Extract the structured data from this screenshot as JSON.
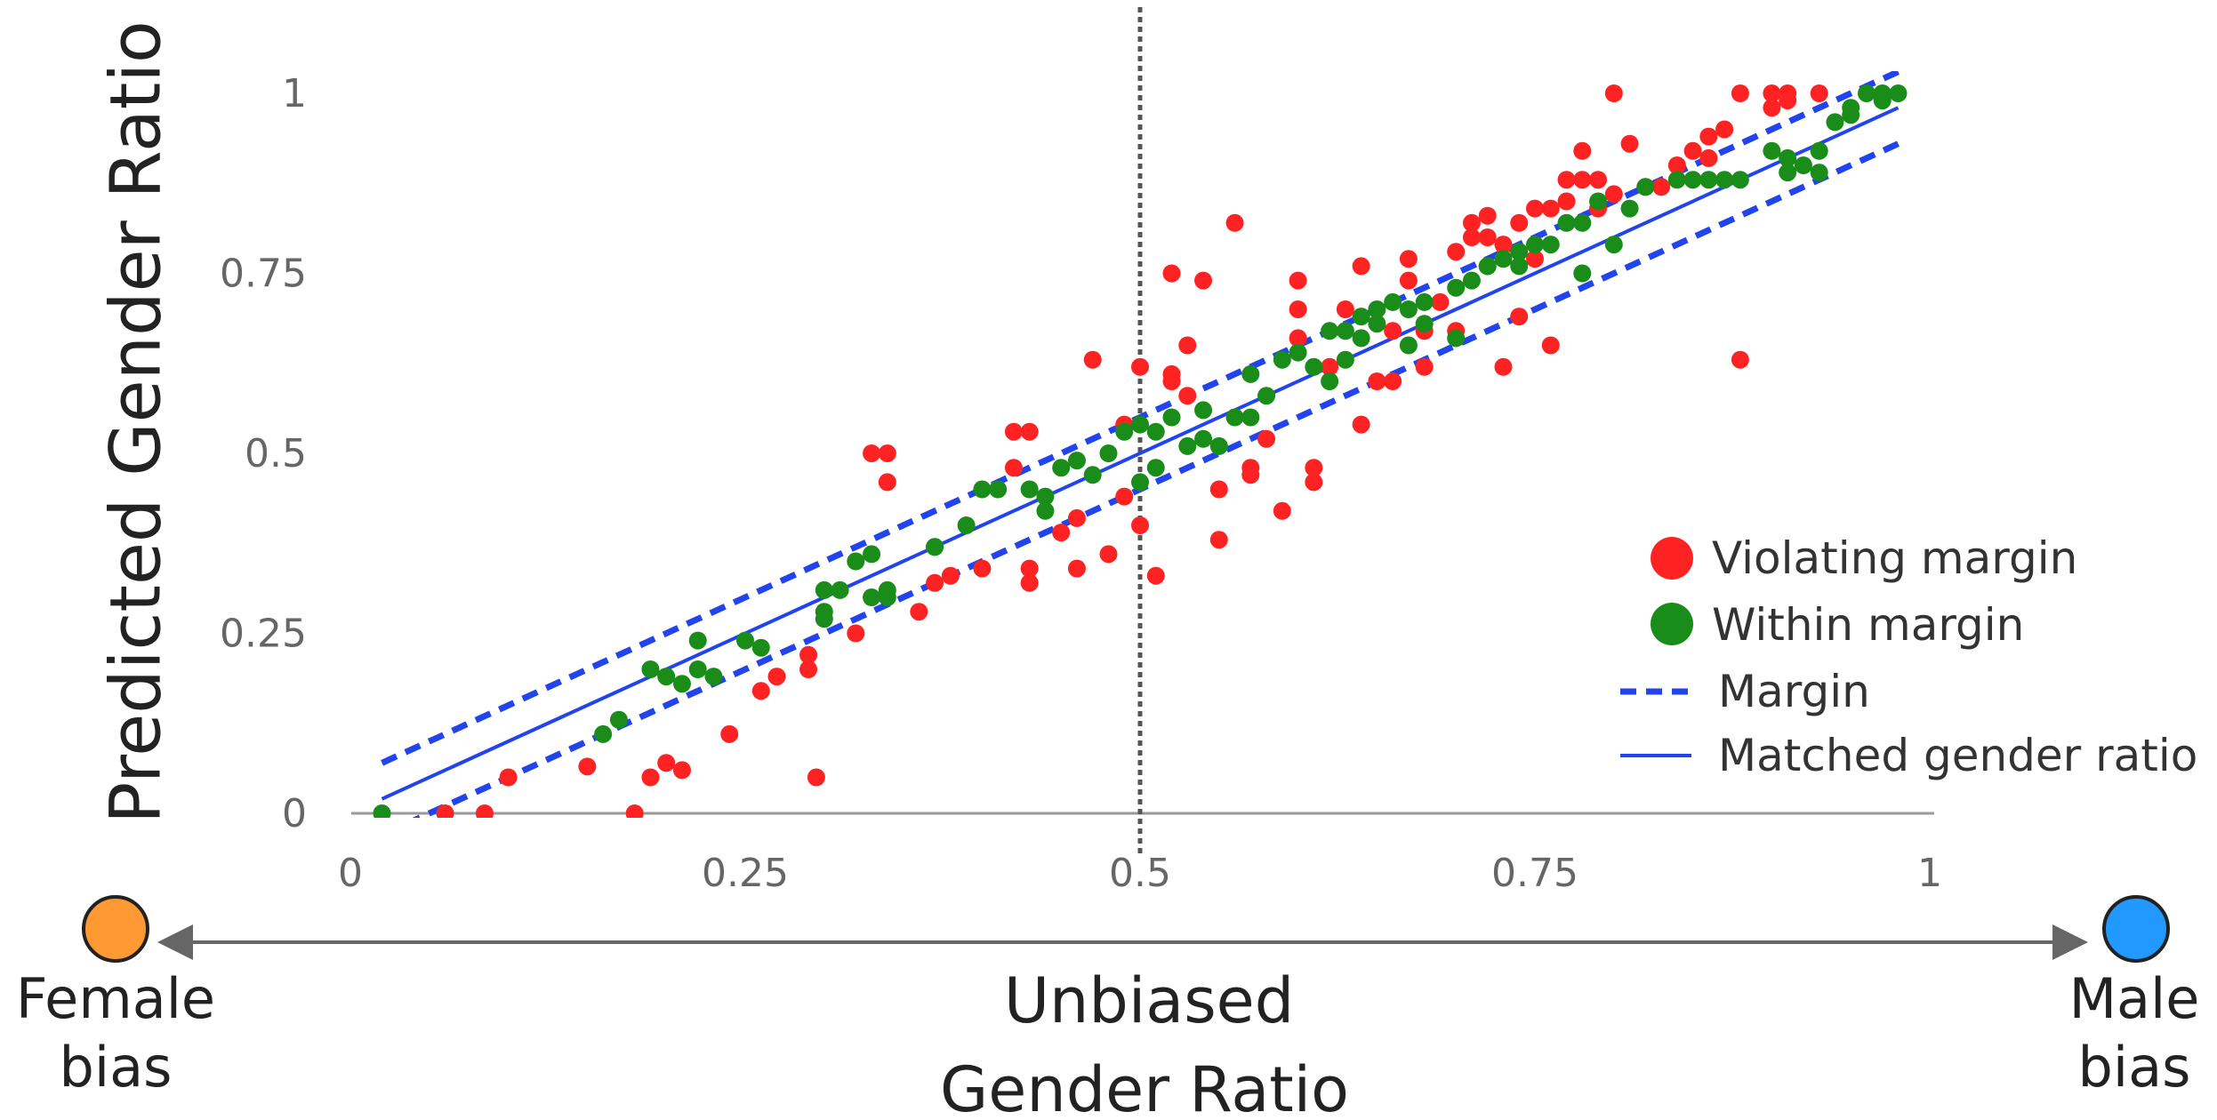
{
  "chart_data": {
    "type": "scatter",
    "xlabel": "Gender Ratio",
    "ylabel": "Predicted Gender Ratio",
    "xlim": [
      0,
      1
    ],
    "ylim": [
      0,
      1
    ],
    "x_ticks": [
      "0",
      "0.25",
      "0.5",
      "0.75",
      "1"
    ],
    "y_ticks": [
      "0",
      "0.25",
      "0.5",
      "0.75",
      "1"
    ],
    "reference_x": 0.5,
    "margin": 0.05,
    "grid": false,
    "legend_position": "bottom-right",
    "legend": {
      "violating": "Violating margin",
      "within": "Within margin",
      "margin": "Margin",
      "matched": "Matched gender ratio"
    },
    "colors": {
      "violating": "#ff2222",
      "within": "#1a8c1a",
      "line": "#2244ee",
      "female": "#ff9933",
      "male": "#2299ff",
      "arrow": "#666666"
    },
    "bias_axis": {
      "left_line1": "Female",
      "left_line2": "bias",
      "center": "Unbiased",
      "right_line1": "Male",
      "right_line2": "bias"
    },
    "series": [
      {
        "name": "Violating margin",
        "points": [
          [
            0.06,
            0.0
          ],
          [
            0.085,
            0.0
          ],
          [
            0.18,
            0.0
          ],
          [
            0.1,
            0.05
          ],
          [
            0.15,
            0.065
          ],
          [
            0.19,
            0.05
          ],
          [
            0.2,
            0.07
          ],
          [
            0.21,
            0.06
          ],
          [
            0.24,
            0.11
          ],
          [
            0.26,
            0.17
          ],
          [
            0.27,
            0.19
          ],
          [
            0.29,
            0.2
          ],
          [
            0.29,
            0.22
          ],
          [
            0.295,
            0.05
          ],
          [
            0.33,
            0.5
          ],
          [
            0.34,
            0.5
          ],
          [
            0.34,
            0.46
          ],
          [
            0.32,
            0.25
          ],
          [
            0.36,
            0.28
          ],
          [
            0.37,
            0.32
          ],
          [
            0.38,
            0.33
          ],
          [
            0.4,
            0.34
          ],
          [
            0.42,
            0.48
          ],
          [
            0.42,
            0.53
          ],
          [
            0.43,
            0.53
          ],
          [
            0.43,
            0.34
          ],
          [
            0.43,
            0.32
          ],
          [
            0.45,
            0.39
          ],
          [
            0.46,
            0.41
          ],
          [
            0.46,
            0.34
          ],
          [
            0.47,
            0.63
          ],
          [
            0.48,
            0.36
          ],
          [
            0.49,
            0.44
          ],
          [
            0.49,
            0.54
          ],
          [
            0.5,
            0.62
          ],
          [
            0.5,
            0.4
          ],
          [
            0.51,
            0.33
          ],
          [
            0.52,
            0.75
          ],
          [
            0.52,
            0.61
          ],
          [
            0.52,
            0.6
          ],
          [
            0.53,
            0.58
          ],
          [
            0.53,
            0.65
          ],
          [
            0.54,
            0.74
          ],
          [
            0.55,
            0.45
          ],
          [
            0.55,
            0.38
          ],
          [
            0.56,
            0.82
          ],
          [
            0.57,
            0.47
          ],
          [
            0.57,
            0.48
          ],
          [
            0.58,
            0.52
          ],
          [
            0.59,
            0.42
          ],
          [
            0.6,
            0.66
          ],
          [
            0.6,
            0.7
          ],
          [
            0.6,
            0.74
          ],
          [
            0.61,
            0.48
          ],
          [
            0.61,
            0.46
          ],
          [
            0.62,
            0.62
          ],
          [
            0.63,
            0.7
          ],
          [
            0.64,
            0.54
          ],
          [
            0.64,
            0.76
          ],
          [
            0.65,
            0.6
          ],
          [
            0.66,
            0.6
          ],
          [
            0.66,
            0.67
          ],
          [
            0.67,
            0.74
          ],
          [
            0.67,
            0.77
          ],
          [
            0.68,
            0.62
          ],
          [
            0.68,
            0.67
          ],
          [
            0.69,
            0.71
          ],
          [
            0.7,
            0.67
          ],
          [
            0.7,
            0.78
          ],
          [
            0.71,
            0.8
          ],
          [
            0.71,
            0.82
          ],
          [
            0.72,
            0.83
          ],
          [
            0.72,
            0.8
          ],
          [
            0.73,
            0.62
          ],
          [
            0.73,
            0.79
          ],
          [
            0.74,
            0.82
          ],
          [
            0.74,
            0.69
          ],
          [
            0.75,
            0.77
          ],
          [
            0.75,
            0.84
          ],
          [
            0.76,
            0.84
          ],
          [
            0.76,
            0.65
          ],
          [
            0.77,
            0.85
          ],
          [
            0.77,
            0.88
          ],
          [
            0.78,
            0.92
          ],
          [
            0.78,
            0.88
          ],
          [
            0.79,
            0.88
          ],
          [
            0.79,
            0.84
          ],
          [
            0.8,
            1.0
          ],
          [
            0.8,
            0.86
          ],
          [
            0.81,
            0.93
          ],
          [
            0.82,
            0.87
          ],
          [
            0.83,
            0.87
          ],
          [
            0.84,
            0.9
          ],
          [
            0.85,
            0.92
          ],
          [
            0.86,
            0.91
          ],
          [
            0.86,
            0.94
          ],
          [
            0.87,
            0.95
          ],
          [
            0.88,
            0.63
          ],
          [
            0.88,
            1.0
          ],
          [
            0.9,
            1.0
          ],
          [
            0.9,
            0.98
          ],
          [
            0.91,
            0.99
          ],
          [
            0.91,
            1.0
          ],
          [
            0.93,
            1.0
          ]
        ]
      },
      {
        "name": "Within margin",
        "points": [
          [
            0.02,
            0.0
          ],
          [
            0.16,
            0.11
          ],
          [
            0.17,
            0.13
          ],
          [
            0.19,
            0.2
          ],
          [
            0.2,
            0.19
          ],
          [
            0.21,
            0.18
          ],
          [
            0.22,
            0.2
          ],
          [
            0.22,
            0.24
          ],
          [
            0.23,
            0.19
          ],
          [
            0.25,
            0.24
          ],
          [
            0.26,
            0.23
          ],
          [
            0.3,
            0.27
          ],
          [
            0.3,
            0.28
          ],
          [
            0.3,
            0.31
          ],
          [
            0.31,
            0.31
          ],
          [
            0.32,
            0.35
          ],
          [
            0.33,
            0.36
          ],
          [
            0.33,
            0.3
          ],
          [
            0.34,
            0.31
          ],
          [
            0.34,
            0.3
          ],
          [
            0.37,
            0.37
          ],
          [
            0.37,
            0.37
          ],
          [
            0.39,
            0.4
          ],
          [
            0.4,
            0.45
          ],
          [
            0.41,
            0.45
          ],
          [
            0.43,
            0.45
          ],
          [
            0.44,
            0.42
          ],
          [
            0.44,
            0.44
          ],
          [
            0.45,
            0.48
          ],
          [
            0.46,
            0.49
          ],
          [
            0.47,
            0.47
          ],
          [
            0.48,
            0.5
          ],
          [
            0.49,
            0.53
          ],
          [
            0.5,
            0.54
          ],
          [
            0.5,
            0.46
          ],
          [
            0.51,
            0.53
          ],
          [
            0.51,
            0.48
          ],
          [
            0.52,
            0.55
          ],
          [
            0.53,
            0.51
          ],
          [
            0.54,
            0.56
          ],
          [
            0.54,
            0.52
          ],
          [
            0.55,
            0.51
          ],
          [
            0.56,
            0.55
          ],
          [
            0.57,
            0.55
          ],
          [
            0.57,
            0.61
          ],
          [
            0.58,
            0.58
          ],
          [
            0.59,
            0.63
          ],
          [
            0.6,
            0.64
          ],
          [
            0.61,
            0.62
          ],
          [
            0.62,
            0.67
          ],
          [
            0.62,
            0.6
          ],
          [
            0.63,
            0.67
          ],
          [
            0.63,
            0.63
          ],
          [
            0.64,
            0.69
          ],
          [
            0.64,
            0.66
          ],
          [
            0.65,
            0.68
          ],
          [
            0.65,
            0.7
          ],
          [
            0.66,
            0.71
          ],
          [
            0.67,
            0.7
          ],
          [
            0.67,
            0.65
          ],
          [
            0.68,
            0.68
          ],
          [
            0.68,
            0.71
          ],
          [
            0.7,
            0.66
          ],
          [
            0.7,
            0.73
          ],
          [
            0.71,
            0.74
          ],
          [
            0.72,
            0.76
          ],
          [
            0.72,
            0.76
          ],
          [
            0.73,
            0.77
          ],
          [
            0.74,
            0.78
          ],
          [
            0.74,
            0.76
          ],
          [
            0.75,
            0.79
          ],
          [
            0.76,
            0.79
          ],
          [
            0.77,
            0.82
          ],
          [
            0.78,
            0.82
          ],
          [
            0.78,
            0.75
          ],
          [
            0.79,
            0.85
          ],
          [
            0.8,
            0.79
          ],
          [
            0.81,
            0.84
          ],
          [
            0.82,
            0.87
          ],
          [
            0.84,
            0.88
          ],
          [
            0.85,
            0.88
          ],
          [
            0.86,
            0.88
          ],
          [
            0.87,
            0.88
          ],
          [
            0.88,
            0.88
          ],
          [
            0.9,
            0.92
          ],
          [
            0.91,
            0.89
          ],
          [
            0.91,
            0.91
          ],
          [
            0.92,
            0.9
          ],
          [
            0.93,
            0.89
          ],
          [
            0.93,
            0.92
          ],
          [
            0.94,
            0.96
          ],
          [
            0.95,
            0.98
          ],
          [
            0.95,
            0.97
          ],
          [
            0.96,
            1.0
          ],
          [
            0.97,
            0.99
          ],
          [
            0.97,
            1.0
          ],
          [
            0.98,
            1.0
          ]
        ]
      }
    ]
  }
}
